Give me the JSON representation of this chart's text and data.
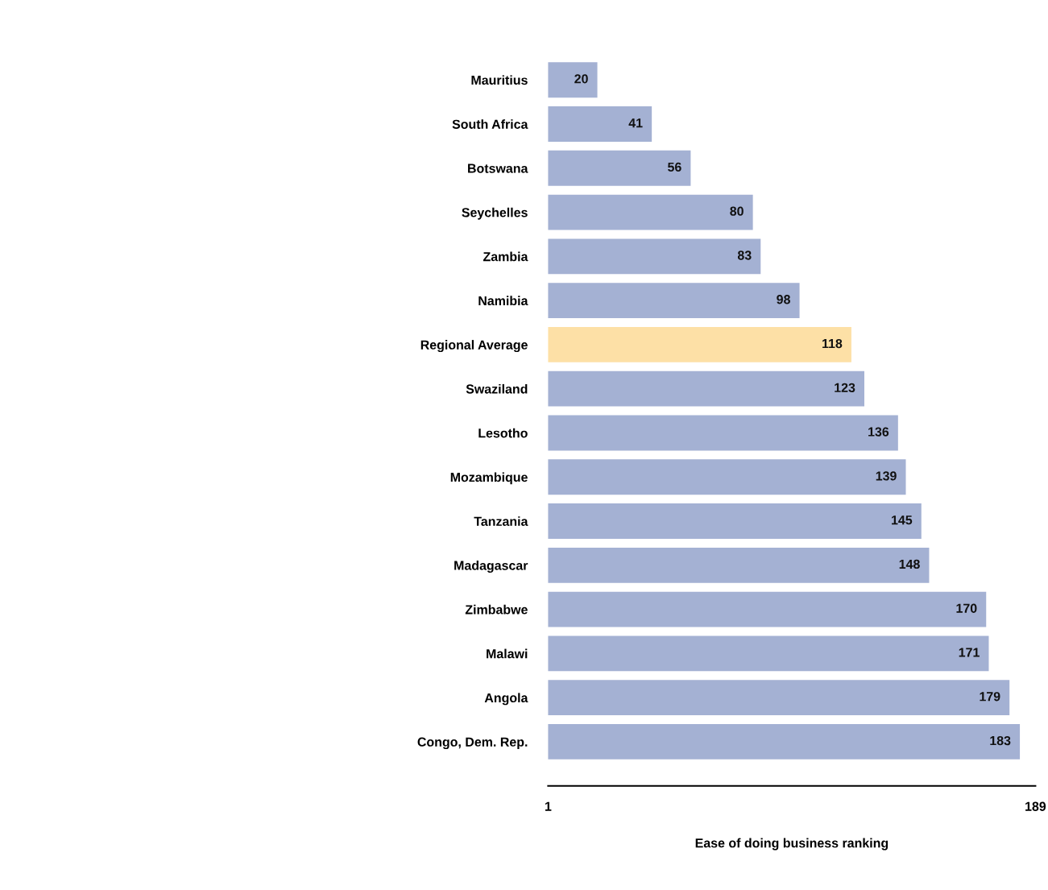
{
  "chart_data": {
    "type": "bar",
    "orientation": "horizontal",
    "xlabel": "Ease of doing business ranking",
    "categories": [
      "Mauritius",
      "South Africa",
      "Botswana",
      "Seychelles",
      "Zambia",
      "Namibia",
      "Regional Average",
      "Swaziland",
      "Lesotho",
      "Mozambique",
      "Tanzania",
      "Madagascar",
      "Zimbabwe",
      "Malawi",
      "Angola",
      "Congo, Dem. Rep."
    ],
    "values": [
      20,
      41,
      56,
      80,
      83,
      98,
      118,
      123,
      136,
      139,
      145,
      148,
      170,
      171,
      179,
      183
    ],
    "colors": [
      "#a4b1d3",
      "#a4b1d3",
      "#a4b1d3",
      "#a4b1d3",
      "#a4b1d3",
      "#a4b1d3",
      "#fde0a6",
      "#a4b1d3",
      "#a4b1d3",
      "#a4b1d3",
      "#a4b1d3",
      "#a4b1d3",
      "#a4b1d3",
      "#a4b1d3",
      "#a4b1d3",
      "#a4b1d3"
    ],
    "xlim": [
      1,
      189
    ],
    "xticks": [
      1,
      189
    ],
    "data_labels": true,
    "grid": false,
    "legend": false
  }
}
